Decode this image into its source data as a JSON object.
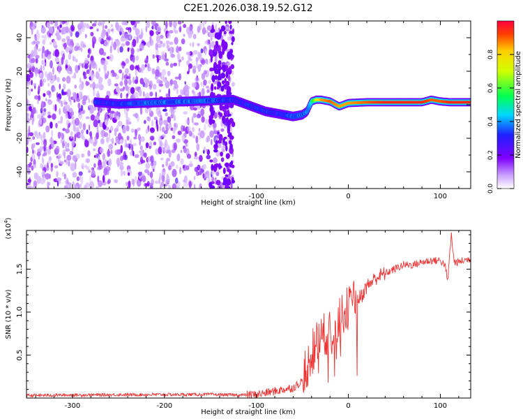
{
  "figure": {
    "title": "C2E1.2026.038.19.52.G12"
  },
  "chart_data": [
    {
      "type": "heatmap",
      "title": "",
      "xlabel": "Height of straight line (km)",
      "ylabel": "Frequency (Hz)",
      "xlim": [
        -350,
        133
      ],
      "ylim": [
        -50,
        50
      ],
      "x_ticks": [
        -300,
        -200,
        -100,
        0,
        100
      ],
      "y_ticks": [
        -40,
        -20,
        0,
        20,
        40
      ],
      "colorbar": {
        "label": "Normalized spectral amplitude",
        "range": [
          0.0,
          1.0
        ],
        "ticks": [
          0.0,
          0.2,
          0.4,
          0.6,
          0.8
        ],
        "colormap": "rainbow (white-violet-blue-cyan-green-yellow-red)"
      },
      "signal_trace": {
        "x": [
          -275,
          -250,
          -225,
          -200,
          -175,
          -150,
          -125,
          -110,
          -100,
          -90,
          -80,
          -70,
          -60,
          -50,
          -45,
          -40,
          -35,
          -30,
          -20,
          -10,
          0,
          20,
          40,
          60,
          80,
          90,
          100,
          110,
          120,
          133
        ],
        "y": [
          1.5,
          0.5,
          1,
          1.5,
          2,
          2.5,
          3,
          0,
          -2,
          -4,
          -5,
          -6,
          -7,
          -6,
          -4,
          2,
          3,
          3,
          2,
          -1,
          1,
          1.5,
          1.5,
          1.5,
          1.5,
          3,
          2,
          1.5,
          1.5,
          1.5
        ],
        "normalized_amplitude": [
          0.3,
          0.3,
          0.35,
          0.35,
          0.35,
          0.35,
          0.3,
          0.3,
          0.3,
          0.3,
          0.3,
          0.3,
          0.35,
          0.35,
          0.35,
          0.5,
          0.7,
          0.85,
          0.9,
          0.85,
          0.85,
          0.9,
          0.95,
          0.95,
          0.95,
          0.9,
          0.9,
          0.95,
          0.95,
          0.95
        ]
      },
      "noise_region": {
        "x_range": [
          -350,
          -125
        ],
        "y_range": [
          -50,
          50
        ]
      }
    },
    {
      "type": "line",
      "title": "",
      "xlabel": "Height of straight line (km)",
      "ylabel": "SNR (10 * v/v)",
      "y_multiplier": "(x10^4)",
      "y_multiplier_base": "(x10",
      "y_multiplier_exp": "4",
      "xlim": [
        -350,
        133
      ],
      "ylim": [
        0,
        19500
      ],
      "x_ticks": [
        -300,
        -200,
        -100,
        0,
        100
      ],
      "y_ticks": [
        5000,
        10000,
        15000
      ],
      "y_tick_labels": [
        "0.5",
        "1.0",
        "1.5"
      ],
      "series": [
        {
          "color": "#ee3333",
          "x": [
            -350,
            -300,
            -250,
            -200,
            -150,
            -120,
            -100,
            -80,
            -60,
            -50,
            -45,
            -40,
            -35,
            -30,
            -25,
            -20,
            -15,
            -10,
            -5,
            0,
            5,
            10,
            15,
            20,
            25,
            30,
            40,
            50,
            60,
            70,
            80,
            90,
            100,
            105,
            108,
            110,
            112,
            115,
            120,
            125,
            133
          ],
          "y": [
            300,
            350,
            380,
            400,
            420,
            350,
            400,
            800,
            1200,
            2000,
            3500,
            5500,
            6500,
            7000,
            7500,
            7500,
            8000,
            9000,
            10000,
            10500,
            11000,
            11500,
            12000,
            13000,
            13500,
            14000,
            14500,
            15000,
            15500,
            15500,
            15800,
            16000,
            16000,
            15500,
            13500,
            16500,
            19000,
            15800,
            15800,
            16000,
            16200
          ]
        }
      ]
    }
  ]
}
